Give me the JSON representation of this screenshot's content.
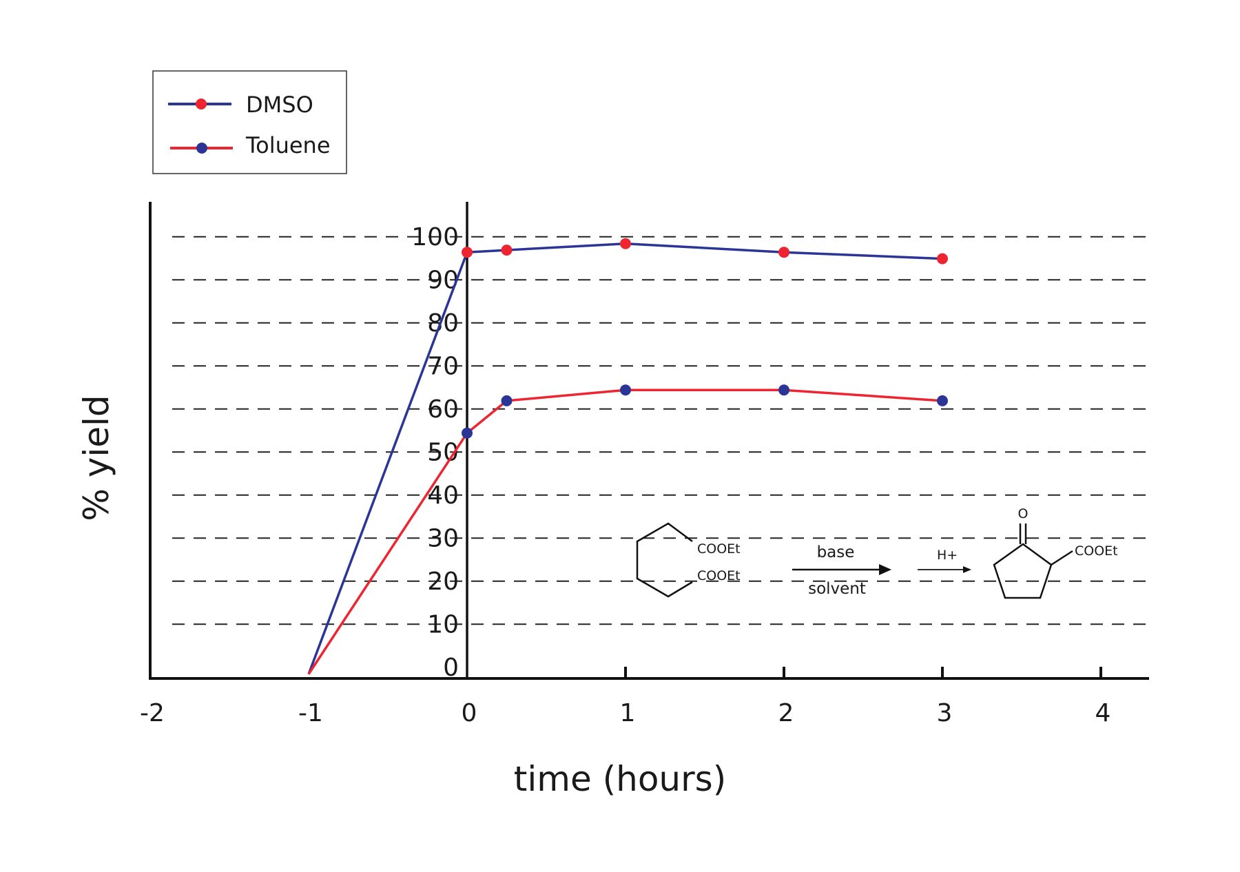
{
  "chart_data": {
    "type": "line",
    "title": "",
    "xlabel": "time (hours)",
    "ylabel": "% yield",
    "xlim": [
      -2,
      4.3
    ],
    "ylim": [
      -1,
      109
    ],
    "x_ticks": [
      "-2",
      "-1",
      "0",
      "1",
      "2",
      "3",
      "4"
    ],
    "y_ticks": [
      "0",
      "10",
      "20",
      "30",
      "40",
      "50",
      "60",
      "70",
      "80",
      "90",
      "100"
    ],
    "grid": "horizontal dashed",
    "legend_position": "top-left",
    "series": [
      {
        "name": "DMSO",
        "line_color": "#2b3596",
        "marker_color": "#ee2530",
        "x": [
          -1,
          0,
          0.25,
          1,
          2,
          3
        ],
        "y": [
          0,
          98,
          98.5,
          100,
          98,
          96.5
        ]
      },
      {
        "name": "Toluene",
        "line_color": "#ee2530",
        "marker_color": "#2b3596",
        "x": [
          -1,
          0,
          0.25,
          1,
          2,
          3
        ],
        "y": [
          0,
          56,
          63.5,
          66,
          66,
          63.5
        ]
      }
    ],
    "annotation": {
      "reactant_label_1": "COOEt",
      "reactant_label_2": "COOEt",
      "reagent_above": "base",
      "reagent_below": "solvent",
      "acid_label": "H+",
      "product_oxygen": "O",
      "product_label": "COOEt"
    }
  }
}
